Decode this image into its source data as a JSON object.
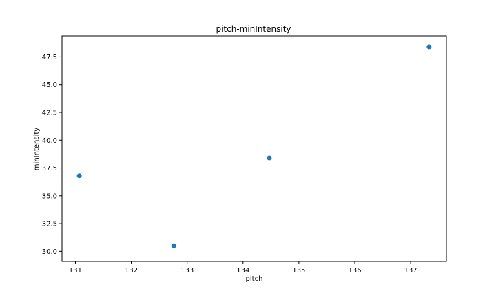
{
  "chart_data": {
    "type": "scatter",
    "title": "pitch-minIntensity",
    "xlabel": "pitch",
    "ylabel": "minIntensity",
    "xlim": [
      130.76,
      137.64
    ],
    "ylim": [
      29.09,
      49.39
    ],
    "xticks": [
      131,
      132,
      133,
      134,
      135,
      136,
      137
    ],
    "xtick_labels": [
      "131",
      "132",
      "133",
      "134",
      "135",
      "136",
      "137"
    ],
    "yticks": [
      30.0,
      32.5,
      35.0,
      37.5,
      40.0,
      42.5,
      45.0,
      47.5
    ],
    "ytick_labels": [
      "30.0",
      "32.5",
      "35.0",
      "37.5",
      "40.0",
      "42.5",
      "45.0",
      "47.5"
    ],
    "grid": false,
    "marker_color": "#1f77b4",
    "points": [
      {
        "x": 131.07,
        "y": 36.8
      },
      {
        "x": 132.76,
        "y": 30.5
      },
      {
        "x": 134.47,
        "y": 38.4
      },
      {
        "x": 137.33,
        "y": 48.4
      }
    ]
  }
}
